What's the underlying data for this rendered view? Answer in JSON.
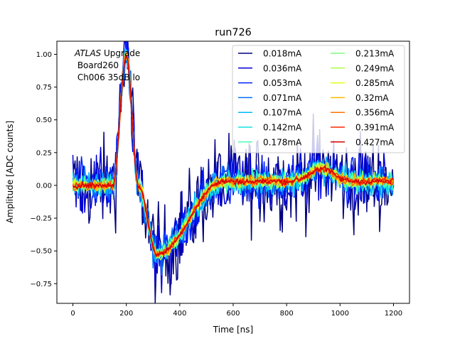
{
  "chart_data": {
    "type": "line",
    "title": "run726",
    "xlabel": "Time [ns]",
    "ylabel": "Amplitude [ADC counts]",
    "xlim": [
      -60,
      1260
    ],
    "ylim": [
      -0.9,
      1.1
    ],
    "xticks": [
      0,
      200,
      400,
      600,
      800,
      1000,
      1200
    ],
    "yticks": [
      -0.75,
      -0.5,
      -0.25,
      0.0,
      0.25,
      0.5,
      0.75,
      1.0
    ],
    "xtick_labels": [
      "0",
      "200",
      "400",
      "600",
      "800",
      "1000",
      "1200"
    ],
    "ytick_labels": [
      "−0.75",
      "−0.50",
      "−0.25",
      "0.00",
      "0.25",
      "0.50",
      "0.75",
      "1.00"
    ],
    "annotation": {
      "line1_italic": "ATLAS",
      "line1_rest": " Upgrade",
      "line2": " Board260",
      "line3": " Ch006 35dB lo"
    },
    "legend_position": "top-right",
    "legend_columns": 2,
    "x_range": [
      0,
      1200
    ],
    "x_step": 4,
    "pulse_shape": {
      "rise_start": 150,
      "peak_time": 200,
      "peak_value": 1.0,
      "zero_cross": 245,
      "trough_time": 315,
      "trough_value": -0.53,
      "recovery_end": 560,
      "tail_level": 0.03,
      "bump_center": 930,
      "bump_value": 0.1,
      "bump_width": 60
    },
    "series": [
      {
        "name": "0.018mA",
        "color": "#00007f",
        "noise": 0.3
      },
      {
        "name": "0.036mA",
        "color": "#0000d4",
        "noise": 0.2
      },
      {
        "name": "0.053mA",
        "color": "#0022ff",
        "noise": 0.15
      },
      {
        "name": "0.071mA",
        "color": "#0070ff",
        "noise": 0.11
      },
      {
        "name": "0.107mA",
        "color": "#00b8ff",
        "noise": 0.085
      },
      {
        "name": "0.142mA",
        "color": "#16e2e2",
        "noise": 0.07
      },
      {
        "name": "0.178mA",
        "color": "#47ffb0",
        "noise": 0.06
      },
      {
        "name": "0.213mA",
        "color": "#7bff7b",
        "noise": 0.05
      },
      {
        "name": "0.249mA",
        "color": "#b0ff47",
        "noise": 0.045
      },
      {
        "name": "0.285mA",
        "color": "#e4ff13",
        "noise": 0.04
      },
      {
        "name": "0.32mA",
        "color": "#ffb900",
        "noise": 0.035
      },
      {
        "name": "0.356mA",
        "color": "#ff7300",
        "noise": 0.03
      },
      {
        "name": "0.391mA",
        "color": "#ff2900",
        "noise": 0.025
      },
      {
        "name": "0.427mA",
        "color": "#d40000",
        "noise": 0.02
      }
    ]
  }
}
